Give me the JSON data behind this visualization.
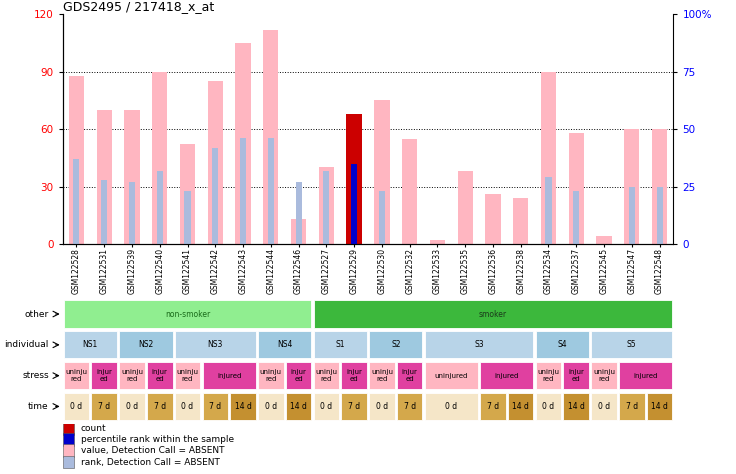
{
  "title": "GDS2495 / 217418_x_at",
  "samples": [
    "GSM122528",
    "GSM122531",
    "GSM122539",
    "GSM122540",
    "GSM122541",
    "GSM122542",
    "GSM122543",
    "GSM122544",
    "GSM122546",
    "GSM122527",
    "GSM122529",
    "GSM122530",
    "GSM122532",
    "GSM122533",
    "GSM122535",
    "GSM122536",
    "GSM122538",
    "GSM122534",
    "GSM122537",
    "GSM122545",
    "GSM122547",
    "GSM122548"
  ],
  "pink_bars": [
    88,
    70,
    70,
    90,
    52,
    85,
    105,
    112,
    13,
    40,
    78,
    75,
    55,
    2,
    38,
    26,
    24,
    90,
    58,
    4,
    60,
    60
  ],
  "blue_bars_pct": [
    37,
    28,
    27,
    32,
    23,
    42,
    46,
    46,
    27,
    32,
    35,
    23,
    0,
    0,
    0,
    0,
    0,
    29,
    23,
    0,
    25,
    25
  ],
  "red_bar_index": 10,
  "red_bar_value": 68,
  "dark_blue_bar_pct": 35,
  "ylim_left": [
    0,
    120
  ],
  "ylim_right": [
    0,
    100
  ],
  "yticks_left": [
    0,
    30,
    60,
    90,
    120
  ],
  "ytick_labels_left": [
    "0",
    "30",
    "60",
    "90",
    "120"
  ],
  "yticks_right_vals": [
    0,
    25,
    50,
    75,
    100
  ],
  "ytick_labels_right": [
    "0",
    "25",
    "50",
    "75",
    "100%"
  ],
  "grid_lines": [
    30,
    60,
    90
  ],
  "other_row": {
    "label": "other",
    "segments": [
      {
        "text": "non-smoker",
        "start": 0,
        "end": 9,
        "color": "#90EE90",
        "text_color": "#1a6b1a"
      },
      {
        "text": "smoker",
        "start": 9,
        "end": 22,
        "color": "#3cb83c",
        "text_color": "#1a3a1a"
      }
    ]
  },
  "individual_row": {
    "label": "individual",
    "segments": [
      {
        "text": "NS1",
        "start": 0,
        "end": 2,
        "color": "#b8d4e8"
      },
      {
        "text": "NS2",
        "start": 2,
        "end": 4,
        "color": "#9ec9e0"
      },
      {
        "text": "NS3",
        "start": 4,
        "end": 7,
        "color": "#b8d4e8"
      },
      {
        "text": "NS4",
        "start": 7,
        "end": 9,
        "color": "#9ec9e0"
      },
      {
        "text": "S1",
        "start": 9,
        "end": 11,
        "color": "#b8d4e8"
      },
      {
        "text": "S2",
        "start": 11,
        "end": 13,
        "color": "#9ec9e0"
      },
      {
        "text": "S3",
        "start": 13,
        "end": 17,
        "color": "#b8d4e8"
      },
      {
        "text": "S4",
        "start": 17,
        "end": 19,
        "color": "#9ec9e0"
      },
      {
        "text": "S5",
        "start": 19,
        "end": 22,
        "color": "#b8d4e8"
      }
    ]
  },
  "stress_row": {
    "label": "stress",
    "segments": [
      {
        "text": "uninju\nred",
        "start": 0,
        "end": 1,
        "color": "#FFB6C1"
      },
      {
        "text": "injur\ned",
        "start": 1,
        "end": 2,
        "color": "#e040a0"
      },
      {
        "text": "uninju\nred",
        "start": 2,
        "end": 3,
        "color": "#FFB6C1"
      },
      {
        "text": "injur\ned",
        "start": 3,
        "end": 4,
        "color": "#e040a0"
      },
      {
        "text": "uninju\nred",
        "start": 4,
        "end": 5,
        "color": "#FFB6C1"
      },
      {
        "text": "injured",
        "start": 5,
        "end": 7,
        "color": "#e040a0"
      },
      {
        "text": "uninju\nred",
        "start": 7,
        "end": 8,
        "color": "#FFB6C1"
      },
      {
        "text": "injur\ned",
        "start": 8,
        "end": 9,
        "color": "#e040a0"
      },
      {
        "text": "uninju\nred",
        "start": 9,
        "end": 10,
        "color": "#FFB6C1"
      },
      {
        "text": "injur\ned",
        "start": 10,
        "end": 11,
        "color": "#e040a0"
      },
      {
        "text": "uninju\nred",
        "start": 11,
        "end": 12,
        "color": "#FFB6C1"
      },
      {
        "text": "injur\ned",
        "start": 12,
        "end": 13,
        "color": "#e040a0"
      },
      {
        "text": "uninjured",
        "start": 13,
        "end": 15,
        "color": "#FFB6C1"
      },
      {
        "text": "injured",
        "start": 15,
        "end": 17,
        "color": "#e040a0"
      },
      {
        "text": "uninju\nred",
        "start": 17,
        "end": 18,
        "color": "#FFB6C1"
      },
      {
        "text": "injur\ned",
        "start": 18,
        "end": 19,
        "color": "#e040a0"
      },
      {
        "text": "uninju\nred",
        "start": 19,
        "end": 20,
        "color": "#FFB6C1"
      },
      {
        "text": "injured",
        "start": 20,
        "end": 22,
        "color": "#e040a0"
      }
    ]
  },
  "time_row": {
    "label": "time",
    "segments": [
      {
        "text": "0 d",
        "start": 0,
        "end": 1,
        "color": "#f5e6c8"
      },
      {
        "text": "7 d",
        "start": 1,
        "end": 2,
        "color": "#d4a84b"
      },
      {
        "text": "0 d",
        "start": 2,
        "end": 3,
        "color": "#f5e6c8"
      },
      {
        "text": "7 d",
        "start": 3,
        "end": 4,
        "color": "#d4a84b"
      },
      {
        "text": "0 d",
        "start": 4,
        "end": 5,
        "color": "#f5e6c8"
      },
      {
        "text": "7 d",
        "start": 5,
        "end": 6,
        "color": "#d4a84b"
      },
      {
        "text": "14 d",
        "start": 6,
        "end": 7,
        "color": "#c49030"
      },
      {
        "text": "0 d",
        "start": 7,
        "end": 8,
        "color": "#f5e6c8"
      },
      {
        "text": "14 d",
        "start": 8,
        "end": 9,
        "color": "#c49030"
      },
      {
        "text": "0 d",
        "start": 9,
        "end": 10,
        "color": "#f5e6c8"
      },
      {
        "text": "7 d",
        "start": 10,
        "end": 11,
        "color": "#d4a84b"
      },
      {
        "text": "0 d",
        "start": 11,
        "end": 12,
        "color": "#f5e6c8"
      },
      {
        "text": "7 d",
        "start": 12,
        "end": 13,
        "color": "#d4a84b"
      },
      {
        "text": "0 d",
        "start": 13,
        "end": 15,
        "color": "#f5e6c8"
      },
      {
        "text": "7 d",
        "start": 15,
        "end": 16,
        "color": "#d4a84b"
      },
      {
        "text": "14 d",
        "start": 16,
        "end": 17,
        "color": "#c49030"
      },
      {
        "text": "0 d",
        "start": 17,
        "end": 18,
        "color": "#f5e6c8"
      },
      {
        "text": "14 d",
        "start": 18,
        "end": 19,
        "color": "#c49030"
      },
      {
        "text": "0 d",
        "start": 19,
        "end": 20,
        "color": "#f5e6c8"
      },
      {
        "text": "7 d",
        "start": 20,
        "end": 21,
        "color": "#d4a84b"
      },
      {
        "text": "14 d",
        "start": 21,
        "end": 22,
        "color": "#c49030"
      }
    ]
  },
  "legend": [
    {
      "color": "#cc0000",
      "label": "count"
    },
    {
      "color": "#0000cc",
      "label": "percentile rank within the sample"
    },
    {
      "color": "#FFB6C1",
      "label": "value, Detection Call = ABSENT"
    },
    {
      "color": "#aabbdd",
      "label": "rank, Detection Call = ABSENT"
    }
  ],
  "background_color": "#FFFFFF"
}
